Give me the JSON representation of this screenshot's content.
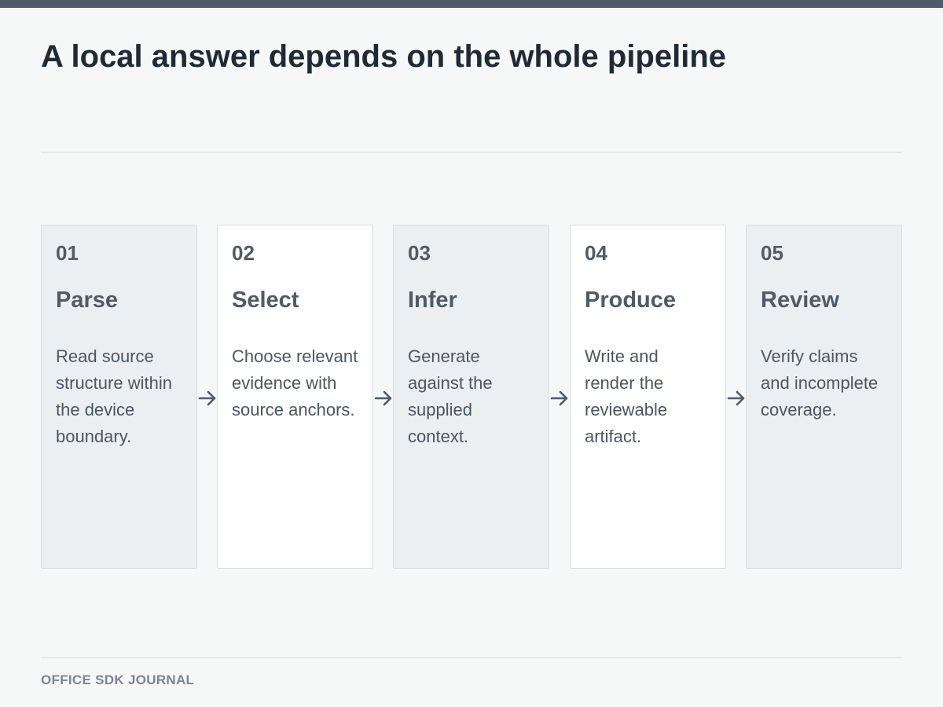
{
  "title": "A local answer depends on the whole pipeline",
  "steps": [
    {
      "number": "01",
      "title": "Parse",
      "description": "Read source structure within the device boundary."
    },
    {
      "number": "02",
      "title": "Select",
      "description": "Choose relevant evidence with source anchors."
    },
    {
      "number": "03",
      "title": "Infer",
      "description": "Generate against the supplied context."
    },
    {
      "number": "04",
      "title": "Produce",
      "description": "Write and render the reviewable artifact."
    },
    {
      "number": "05",
      "title": "Review",
      "description": "Verify claims and incomplete coverage."
    }
  ],
  "footer": "OFFICE SDK JOURNAL",
  "colors": {
    "top_bar": "#4f5b66",
    "title": "#1f2a33",
    "card_shaded": "#eceff1",
    "card_plain": "#ffffff",
    "card_text": "#4f5b66",
    "arrow": "#4f5b66",
    "footer": "#7a868e"
  }
}
